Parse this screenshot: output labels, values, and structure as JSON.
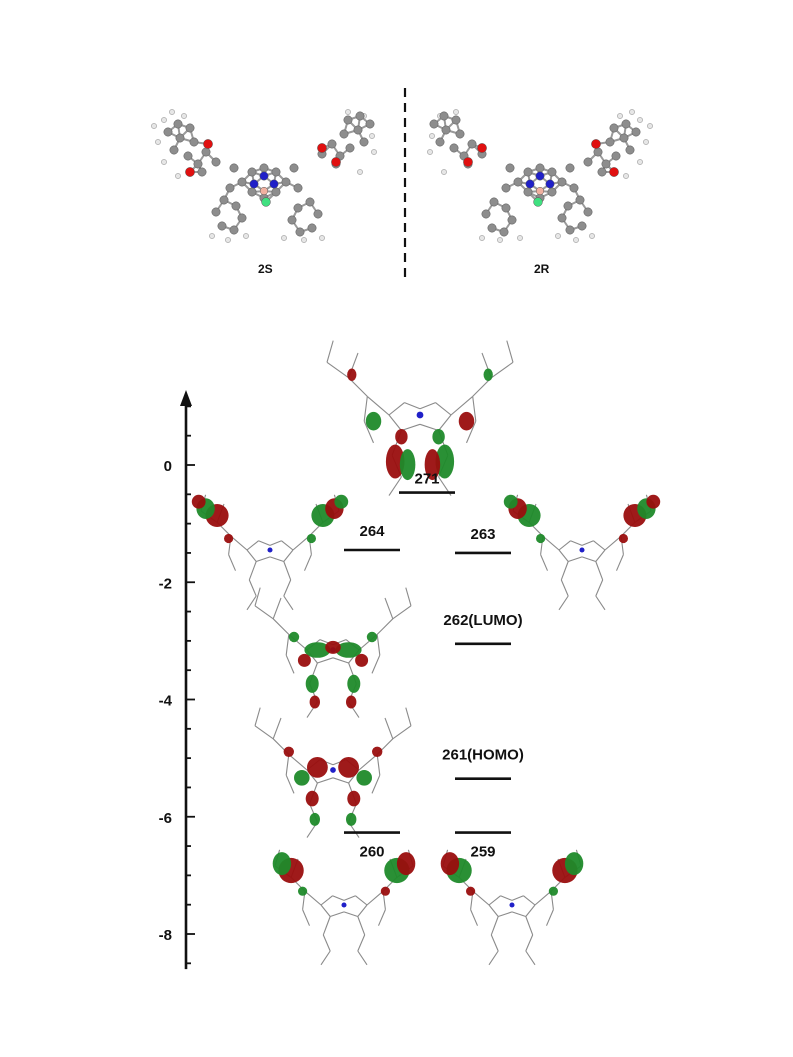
{
  "structures": [
    {
      "id": "2S",
      "label": "2S"
    },
    {
      "id": "2R",
      "label": "2R"
    }
  ],
  "colors": {
    "orbital_positive": "#9a0e0e",
    "orbital_negative": "#1f8a2a",
    "carbon": "#8d8d8d",
    "oxygen": "#e01010",
    "nitrogen": "#2020c8",
    "boron": "#f0b0a0",
    "chlorine": "#40e080"
  },
  "chart_data": {
    "type": "energy-level-diagram",
    "ylim": [
      -8.6,
      1.2
    ],
    "ticks": [
      {
        "value": 0,
        "label": "0"
      },
      {
        "value": -2,
        "label": "-2"
      },
      {
        "value": -4,
        "label": "-4"
      },
      {
        "value": -6,
        "label": "-6"
      },
      {
        "value": -8,
        "label": "-8"
      }
    ],
    "levels": [
      {
        "label": "271",
        "energy": -0.47,
        "column": "center"
      },
      {
        "label": "264",
        "energy": -1.45,
        "column": "left"
      },
      {
        "label": "263",
        "energy": -1.5,
        "column": "right"
      },
      {
        "label": "262(LUMO)",
        "energy": -3.05,
        "column": "right"
      },
      {
        "label": "261(HOMO)",
        "energy": -5.35,
        "column": "right"
      },
      {
        "label": "260",
        "energy": -6.27,
        "column": "left"
      },
      {
        "label": "259",
        "energy": -6.27,
        "column": "right"
      }
    ]
  }
}
